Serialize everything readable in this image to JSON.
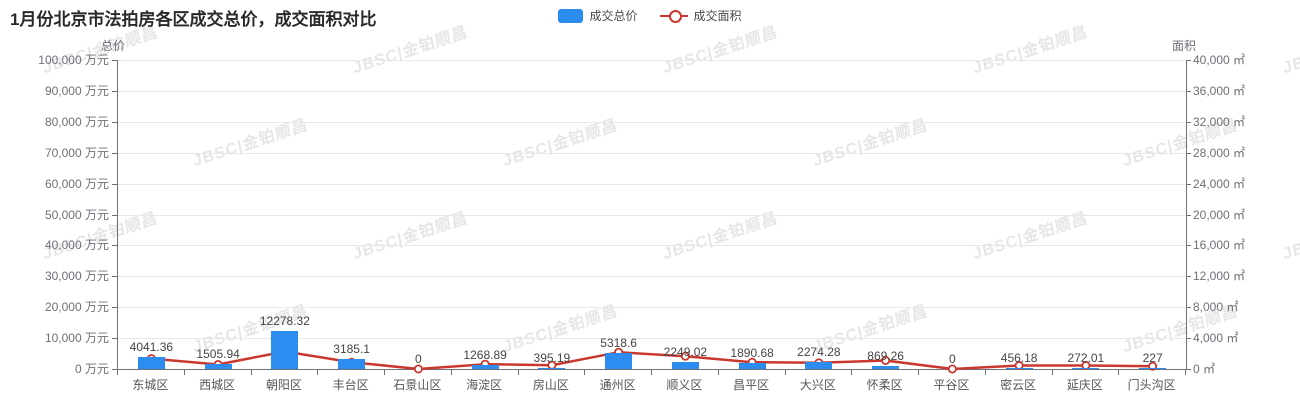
{
  "title": "1月份北京市法拍房各区成交总价，成交面积对比",
  "watermark": {
    "text": "JBSC|金铂顺昌"
  },
  "colors": {
    "bar": "#2d8cf0",
    "line": "#c9382f"
  },
  "chart_data": {
    "type": "bar+line",
    "categories": [
      "东城区",
      "西城区",
      "朝阳区",
      "丰台区",
      "石景山区",
      "海淀区",
      "房山区",
      "通州区",
      "顺义区",
      "昌平区",
      "大兴区",
      "怀柔区",
      "平谷区",
      "密云区",
      "延庆区",
      "门头沟区"
    ],
    "series": [
      {
        "name": "成交总价",
        "type": "bar",
        "axis": "left",
        "unit": "万元",
        "values": [
          4041.36,
          1505.94,
          12278.32,
          3185.1,
          0,
          1268.89,
          395.19,
          5318.6,
          2249.02,
          1890.68,
          2274.28,
          869.26,
          0,
          456.18,
          272.01,
          227
        ],
        "labels_shown": true
      },
      {
        "name": "成交面积",
        "type": "line",
        "axis": "right",
        "unit": "㎡",
        "values": [
          1350,
          580,
          2260,
          880,
          0,
          620,
          490,
          2170,
          1650,
          880,
          800,
          1100,
          0,
          450,
          450,
          360
        ],
        "estimated": true,
        "labels_shown": false
      }
    ],
    "left_axis": {
      "name": "总价",
      "min": 0,
      "max": 100000,
      "step": 10000,
      "unit": "万元"
    },
    "right_axis": {
      "name": "面积",
      "min": 0,
      "max": 40000,
      "step": 4000,
      "unit": "㎡"
    },
    "grid": true,
    "legend_position": "top-center"
  }
}
